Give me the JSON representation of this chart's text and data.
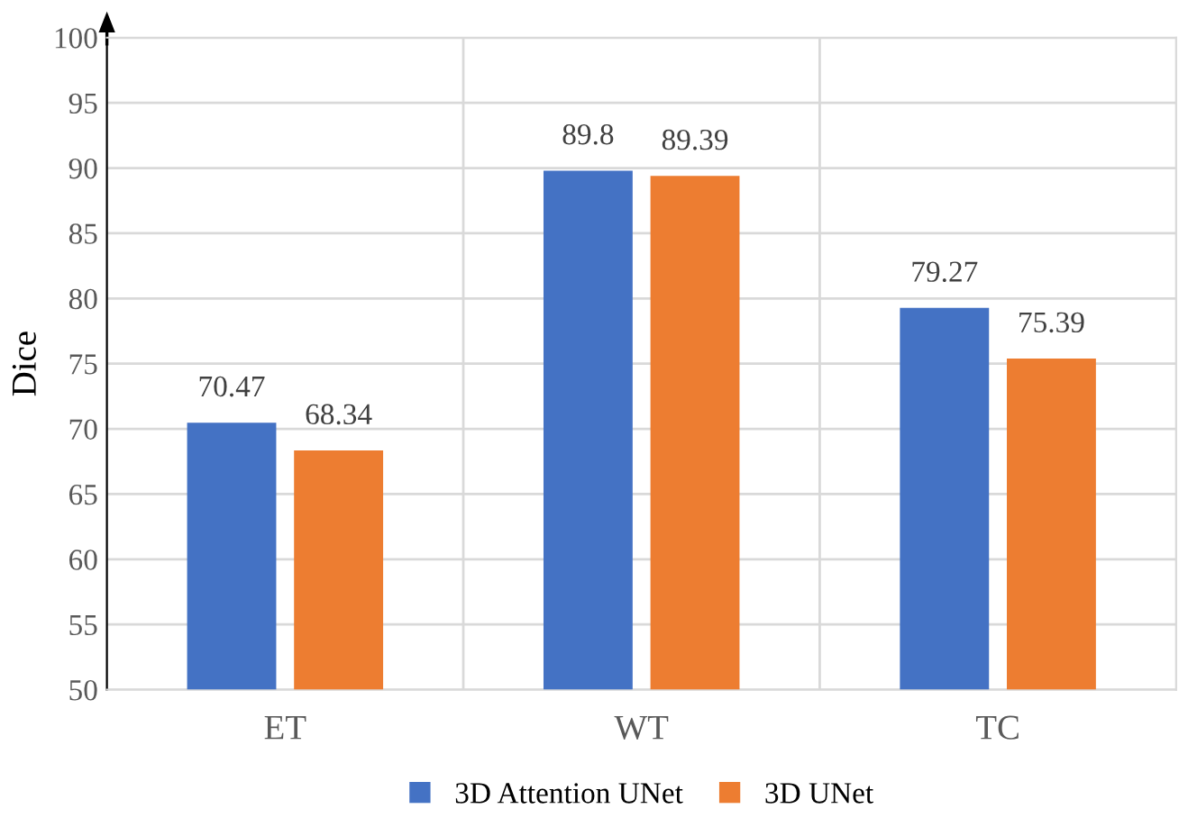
{
  "chart_data": {
    "type": "bar",
    "ylabel": "Dice",
    "categories": [
      "ET",
      "WT",
      "TC"
    ],
    "series": [
      {
        "name": "3D Attention UNet",
        "color": "#4472c4",
        "values": [
          70.47,
          89.8,
          79.27
        ]
      },
      {
        "name": "3D UNet",
        "color": "#ed7d31",
        "values": [
          68.34,
          89.39,
          75.39
        ]
      }
    ],
    "ylim": [
      50,
      100
    ],
    "yticks": [
      50,
      55,
      60,
      65,
      70,
      75,
      80,
      85,
      90,
      95,
      100
    ],
    "grid": true,
    "legend": "bottom",
    "data_labels": true
  }
}
